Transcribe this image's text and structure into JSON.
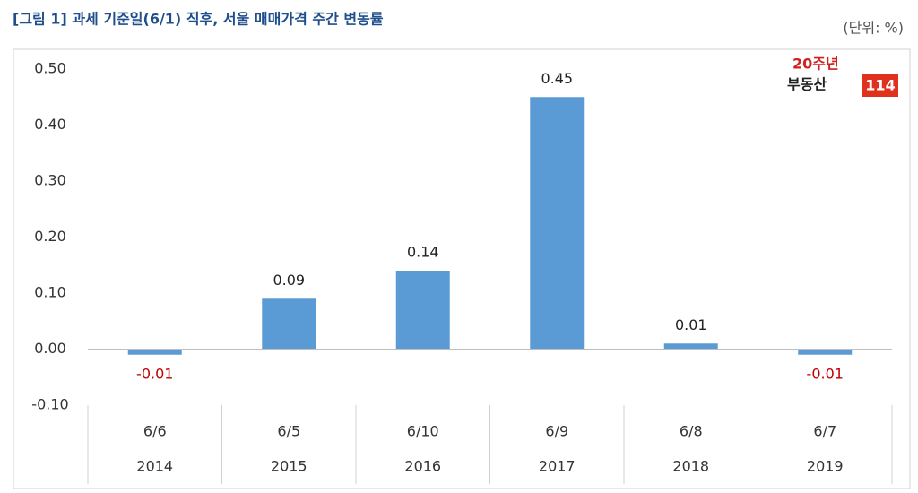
{
  "chart_data": {
    "type": "bar",
    "title": "[그림 1] 과세 기준일(6/1) 직후, 서울 매매가격 주간 변동률",
    "unit_label": "(단위: %)",
    "categories": [
      "6/6",
      "6/5",
      "6/10",
      "6/9",
      "6/8",
      "6/7"
    ],
    "category_groups": [
      "2014",
      "2015",
      "2016",
      "2017",
      "2018",
      "2019"
    ],
    "values": [
      -0.01,
      0.09,
      0.14,
      0.45,
      0.01,
      -0.01
    ],
    "color": "#5b9bd5",
    "label_color": "#222222",
    "negative_label_color": "#c00000",
    "ylim": [
      -0.1,
      0.5
    ],
    "yticks": [
      {
        "value": -0.1,
        "label": "-0.10"
      },
      {
        "value": 0,
        "label": "0.00"
      },
      {
        "value": 0.1,
        "label": "0.10"
      },
      {
        "value": 0.2,
        "label": "0.20"
      },
      {
        "value": 0.3,
        "label": "0.30"
      },
      {
        "value": 0.4,
        "label": "0.40"
      },
      {
        "value": 0.5,
        "label": "0.50"
      }
    ],
    "grid": false
  },
  "logo": {
    "badge": "20주년",
    "name": "부동산",
    "number": "114"
  }
}
